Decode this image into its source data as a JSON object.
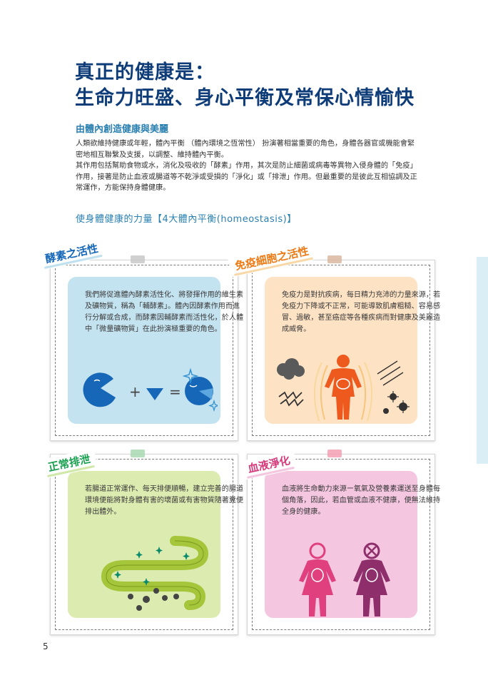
{
  "title_line1": "真正的健康是：",
  "title_line2": "生命力旺盛、身心平衡及常保心情愉快",
  "subtitle": "由體內創造健康與美麗",
  "intro_p1": "人類欲維持健康或年輕，體內平衡 （體內環境之恆常性） 扮演著相當重要的角色，身體各器官或機能會緊密地相互聯繫及支援，以調整、維持體內平衡。",
  "intro_p2": "其作用包括幫助食物或水，消化及吸收的「酵素」作用，其次是防止細菌或病毒等異物入侵身體的「免疫」作用，接著是防止血液或腸道等不乾淨或受損的「淨化」或「排泄」作用。但最重要的是彼此互相協調及正常運作，方能保持身體健康。",
  "section_heading": "使身體健康的力量【4大體內平衡(homeostasis)】",
  "cards": {
    "enzyme": {
      "label": "酵素之活性",
      "text": "我們將促進體內酵素活性化、將發揮作用的維生素及礦物質，稱為「輔酵素」。體內因酵素作用而進行分解或合成，而酵素因輔酵素而活性化，於人體中「微量礦物質」在此扮演極重要的角色。",
      "plus": "+",
      "equals": "="
    },
    "immunity": {
      "label": "免疫細胞之活性",
      "text": "免疫力是對抗疾病，每日精力充沛的力量來源，若免疫力下降或不正常，可能導致肌膚粗糙、容易感冒、過敏，甚至癌症等各種疾病而對健康及美麗造成威脅。"
    },
    "excretion": {
      "label": "正常排泄",
      "text": "若腸道正常運作、每天排便順暢，建立完善的腸道環境便能將對身體有害的壞菌或有害物質隨著糞便排出體外。"
    },
    "blood": {
      "label": "血液淨化",
      "text": "血液將生命動力來源ー氧氣及營養素運送至身體每個角落，因此，若血管或血液不健康，便無法維持全身的健康。"
    }
  },
  "colors": {
    "title": "#0e3c78",
    "accent": "#2a80b0",
    "enzyme_bg": "#c4e3f0",
    "immunity_bg": "#fde2c4",
    "excretion_bg": "#dcebb0",
    "blood_bg": "#f4c6e0",
    "enzyme_blue": "#1667b8",
    "immunity_orange": "#ee5a1e",
    "gut_green": "#a5c63a",
    "blood_pink": "#e0407e",
    "blood_purple": "#8e2f6c"
  },
  "page_number": "5"
}
